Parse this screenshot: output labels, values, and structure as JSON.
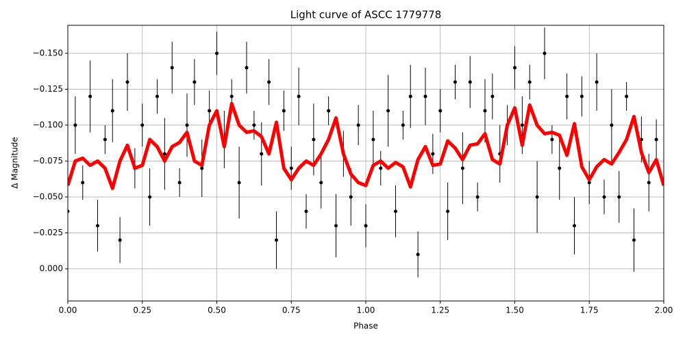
{
  "chart_data": {
    "type": "scatter",
    "title": "Light curve of ASCC 1779778",
    "x_label": "Phase",
    "y_label": "Δ Magnitude",
    "xlim": [
      0,
      2
    ],
    "ylim": [
      0.0224,
      -0.1695
    ],
    "inverted_y": true,
    "grid": true,
    "xticks": [
      {
        "value": 0,
        "label": "0.00"
      },
      {
        "value": 0.25,
        "label": "0.25"
      },
      {
        "value": 0.5,
        "label": "0.50"
      },
      {
        "value": 0.75,
        "label": "0.75"
      },
      {
        "value": 1,
        "label": "1.00"
      },
      {
        "value": 1.25,
        "label": "1.25"
      },
      {
        "value": 1.5,
        "label": "1.50"
      },
      {
        "value": 1.75,
        "label": "1.75"
      },
      {
        "value": 2,
        "label": "2.00"
      }
    ],
    "yticks": [
      {
        "value": 0,
        "label": "0.000"
      },
      {
        "value": -0.025,
        "label": "−0.025"
      },
      {
        "value": -0.05,
        "label": "−0.050"
      },
      {
        "value": -0.075,
        "label": "−0.075"
      },
      {
        "value": -0.1,
        "label": "−0.100"
      },
      {
        "value": -0.125,
        "label": "−0.125"
      },
      {
        "value": -0.15,
        "label": "−0.150"
      }
    ],
    "series": [
      {
        "kind": "points",
        "color": "#000000",
        "x": [
          0,
          0.025,
          0.05,
          0.075,
          0.1,
          0.125,
          0.15,
          0.175,
          0.2,
          0.225,
          0.25,
          0.275,
          0.3,
          0.325,
          0.35,
          0.375,
          0.4,
          0.425,
          0.45,
          0.475,
          0.5,
          0.525,
          0.55,
          0.575,
          0.6,
          0.625,
          0.65,
          0.675,
          0.7,
          0.725,
          0.75,
          0.775,
          0.8,
          0.825,
          0.85,
          0.875,
          0.9,
          0.925,
          0.95,
          0.975,
          1,
          1.025,
          1.05,
          1.075,
          1.1,
          1.125,
          1.15,
          1.175,
          1.2,
          1.225,
          1.25,
          1.275,
          1.3,
          1.325,
          1.35,
          1.375,
          1.4,
          1.425,
          1.45,
          1.475,
          1.5,
          1.525,
          1.55,
          1.575,
          1.6,
          1.625,
          1.65,
          1.675,
          1.7,
          1.725,
          1.75,
          1.775,
          1.8,
          1.825,
          1.85,
          1.875,
          1.9,
          1.925,
          1.95,
          1.975
        ],
        "values": [
          -0.04,
          -0.1,
          -0.06,
          -0.12,
          -0.03,
          -0.09,
          -0.11,
          -0.02,
          -0.13,
          -0.07,
          -0.1,
          -0.05,
          -0.12,
          -0.08,
          -0.14,
          -0.06,
          -0.1,
          -0.13,
          -0.07,
          -0.11,
          -0.15,
          -0.09,
          -0.12,
          -0.06,
          -0.14,
          -0.1,
          -0.08,
          -0.13,
          -0.02,
          -0.11,
          -0.07,
          -0.12,
          -0.04,
          -0.09,
          -0.06,
          -0.11,
          -0.03,
          -0.08,
          -0.05,
          -0.1,
          -0.03,
          -0.09,
          -0.07,
          -0.11,
          -0.04,
          -0.1,
          -0.12,
          -0.01,
          -0.12,
          -0.08,
          -0.11,
          -0.04,
          -0.13,
          -0.07,
          -0.13,
          -0.05,
          -0.11,
          -0.12,
          -0.08,
          -0.1,
          -0.14,
          -0.1,
          -0.13,
          -0.05,
          -0.15,
          -0.09,
          -0.07,
          -0.12,
          -0.03,
          -0.12,
          -0.06,
          -0.13,
          -0.05,
          -0.1,
          -0.05,
          -0.12,
          -0.02,
          -0.09,
          -0.06,
          -0.09
        ],
        "errors": [
          0.015,
          0.02,
          0.012,
          0.025,
          0.018,
          0.01,
          0.022,
          0.016,
          0.02,
          0.014,
          0.015,
          0.02,
          0.012,
          0.025,
          0.018,
          0.01,
          0.022,
          0.016,
          0.02,
          0.014,
          0.015,
          0.02,
          0.012,
          0.025,
          0.018,
          0.01,
          0.022,
          0.016,
          0.02,
          0.014,
          0.015,
          0.02,
          0.012,
          0.025,
          0.018,
          0.01,
          0.022,
          0.016,
          0.02,
          0.014,
          0.015,
          0.02,
          0.012,
          0.025,
          0.018,
          0.01,
          0.022,
          0.016,
          0.02,
          0.014,
          0.015,
          0.02,
          0.012,
          0.025,
          0.018,
          0.01,
          0.022,
          0.016,
          0.02,
          0.014,
          0.015,
          0.02,
          0.012,
          0.025,
          0.018,
          0.01,
          0.022,
          0.016,
          0.02,
          0.014,
          0.015,
          0.02,
          0.012,
          0.025,
          0.018,
          0.01,
          0.022,
          0.016,
          0.02,
          0.014
        ]
      },
      {
        "kind": "line",
        "color": "#ff0000",
        "x": [
          0,
          0.025,
          0.05,
          0.075,
          0.1,
          0.125,
          0.15,
          0.175,
          0.2,
          0.225,
          0.25,
          0.275,
          0.3,
          0.325,
          0.35,
          0.375,
          0.4,
          0.425,
          0.45,
          0.475,
          0.5,
          0.525,
          0.55,
          0.575,
          0.6,
          0.625,
          0.65,
          0.675,
          0.7,
          0.725,
          0.75,
          0.775,
          0.8,
          0.825,
          0.85,
          0.875,
          0.9,
          0.925,
          0.95,
          0.975,
          1,
          1.025,
          1.05,
          1.075,
          1.1,
          1.125,
          1.15,
          1.175,
          1.2,
          1.225,
          1.25,
          1.275,
          1.3,
          1.325,
          1.35,
          1.375,
          1.4,
          1.425,
          1.45,
          1.475,
          1.5,
          1.525,
          1.55,
          1.575,
          1.6,
          1.625,
          1.65,
          1.675,
          1.7,
          1.725,
          1.75,
          1.775,
          1.8,
          1.825,
          1.85,
          1.875,
          1.9,
          1.925,
          1.95,
          1.975,
          2
        ],
        "values": [
          -0.058,
          -0.075,
          -0.077,
          -0.072,
          -0.075,
          -0.07,
          -0.056,
          -0.075,
          -0.086,
          -0.07,
          -0.072,
          -0.09,
          -0.085,
          -0.075,
          -0.085,
          -0.088,
          -0.095,
          -0.075,
          -0.072,
          -0.1,
          -0.11,
          -0.085,
          -0.115,
          -0.1,
          -0.095,
          -0.096,
          -0.092,
          -0.08,
          -0.102,
          -0.07,
          -0.062,
          -0.07,
          -0.075,
          -0.072,
          -0.08,
          -0.09,
          -0.105,
          -0.08,
          -0.066,
          -0.06,
          -0.058,
          -0.072,
          -0.075,
          -0.07,
          -0.074,
          -0.071,
          -0.057,
          -0.076,
          -0.085,
          -0.072,
          -0.073,
          -0.089,
          -0.084,
          -0.076,
          -0.086,
          -0.087,
          -0.094,
          -0.076,
          -0.073,
          -0.1,
          -0.112,
          -0.086,
          -0.114,
          -0.1,
          -0.094,
          -0.095,
          -0.093,
          -0.079,
          -0.101,
          -0.071,
          -0.062,
          -0.071,
          -0.076,
          -0.073,
          -0.081,
          -0.09,
          -0.106,
          -0.081,
          -0.067,
          -0.076,
          -0.058
        ]
      }
    ]
  }
}
